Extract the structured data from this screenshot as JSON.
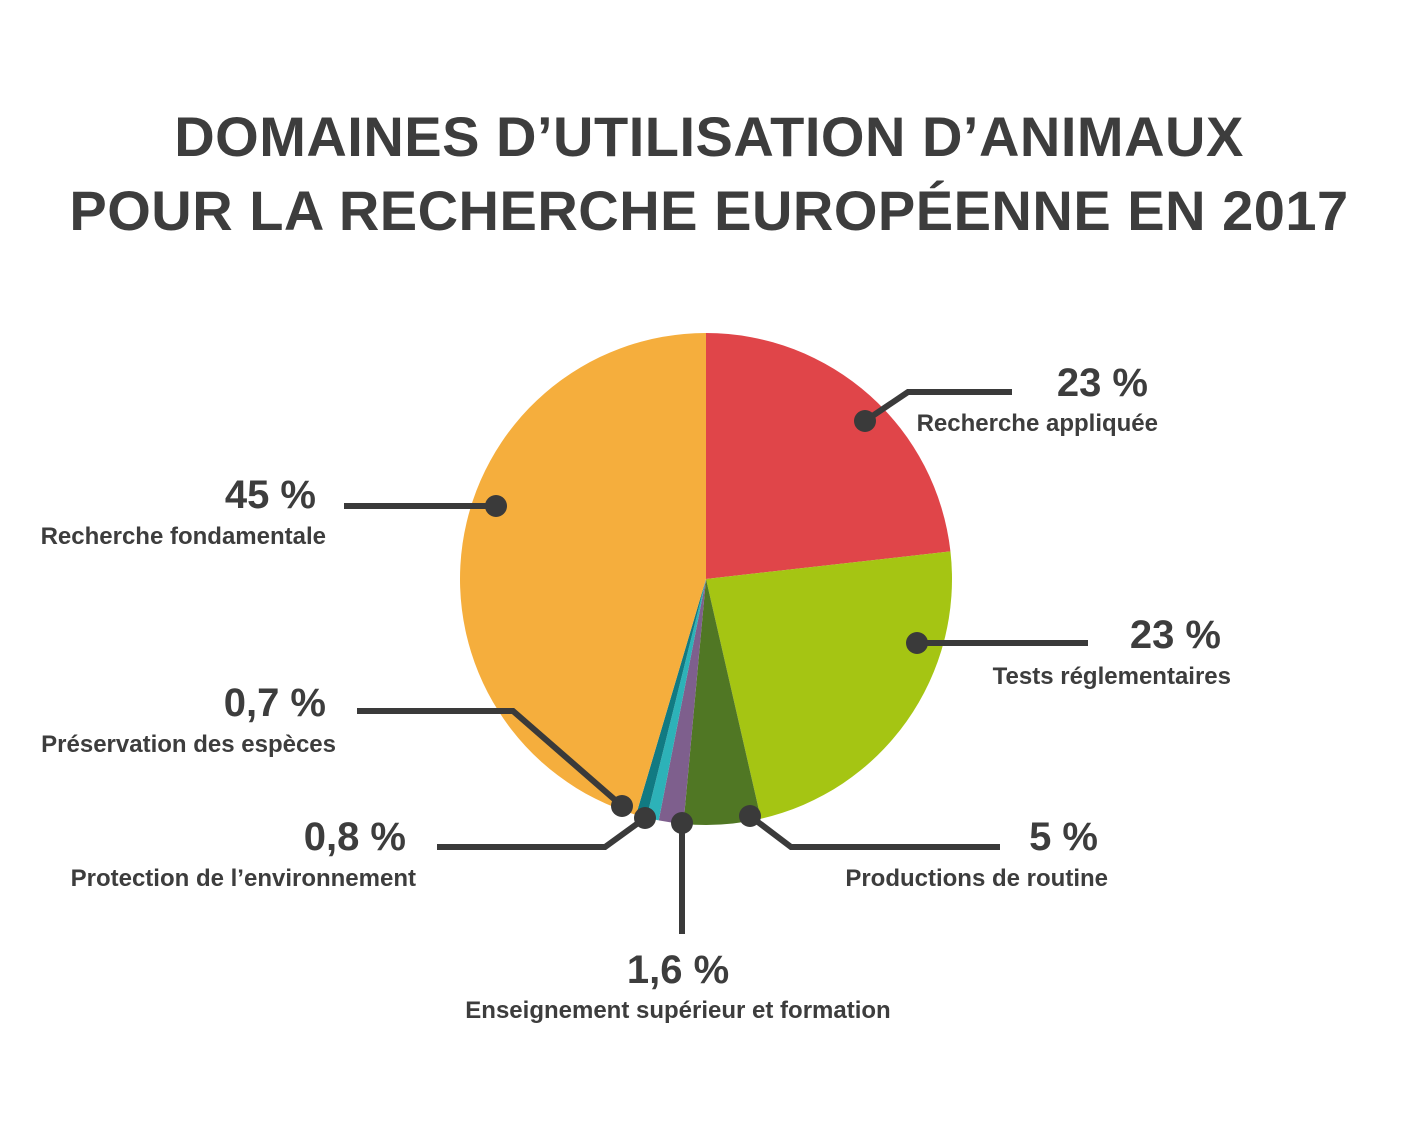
{
  "title": {
    "line1": "DOMAINES D’UTILISATION D’ANIMAUX",
    "line2": "POUR LA RECHERCHE EUROPÉENNE EN 2017"
  },
  "chart_data": {
    "type": "pie",
    "slices": [
      {
        "label": "Recherche appliquée",
        "value": 23,
        "value_text": "23 %",
        "color": "#e04549"
      },
      {
        "label": "Tests réglementaires",
        "value": 23,
        "value_text": "23 %",
        "color": "#a5c513"
      },
      {
        "label": "Productions de routine",
        "value": 5,
        "value_text": "5 %",
        "color": "#507724"
      },
      {
        "label": "Enseignement supérieur et formation",
        "value": 1.6,
        "value_text": "1,6 %",
        "color": "#7e5f8d"
      },
      {
        "label": "Protection de l’environnement",
        "value": 0.8,
        "value_text": "0,8 %",
        "color": "#2db2b8"
      },
      {
        "label": "Préservation des espèces",
        "value": 0.7,
        "value_text": "0,7 %",
        "color": "#117a82"
      },
      {
        "label": "Recherche fondamentale",
        "value": 45,
        "value_text": "45 %",
        "color": "#f5ae3d"
      }
    ]
  }
}
